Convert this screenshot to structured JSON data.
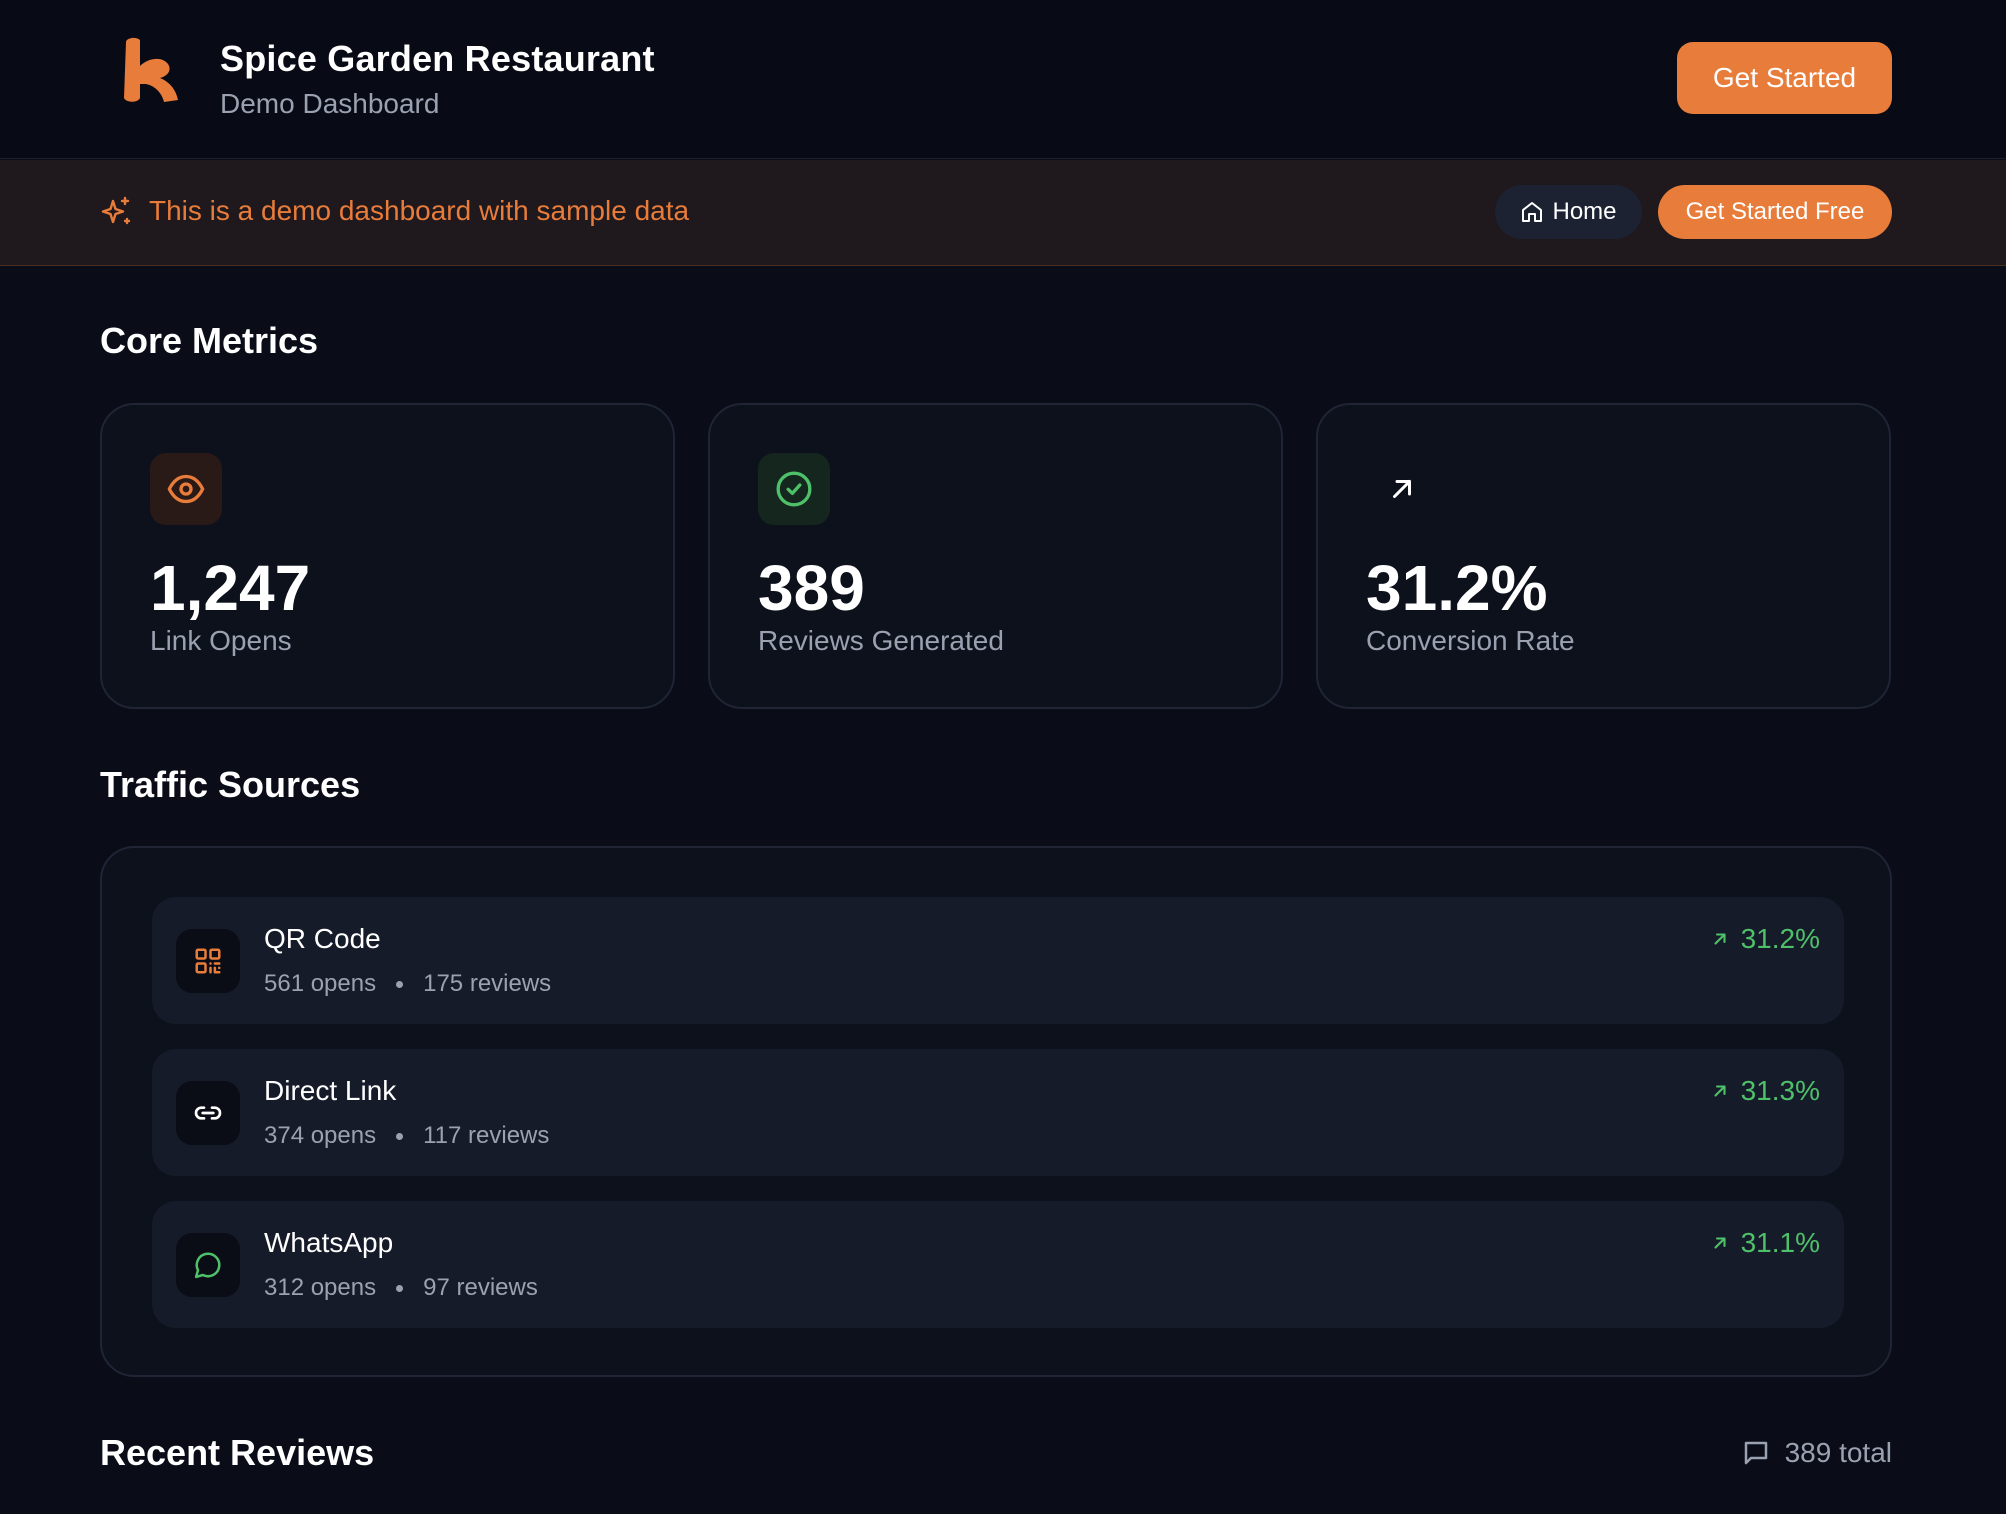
{
  "header": {
    "title": "Spice Garden Restaurant",
    "subtitle": "Demo Dashboard",
    "cta_label": "Get Started"
  },
  "banner": {
    "text": "This is a demo dashboard with sample data",
    "home_label": "Home",
    "cta_label": "Get Started Free"
  },
  "core_metrics": {
    "title": "Core Metrics",
    "cards": [
      {
        "icon": "eye-icon",
        "value": "1,247",
        "label": "Link Opens",
        "accent": "#e87c3a"
      },
      {
        "icon": "check-circle-icon",
        "value": "389",
        "label": "Reviews Generated",
        "accent": "#4fc06a"
      },
      {
        "icon": "arrow-up-right-icon",
        "value": "31.2%",
        "label": "Conversion Rate",
        "accent": "#ffffff"
      }
    ]
  },
  "traffic_sources": {
    "title": "Traffic Sources",
    "items": [
      {
        "icon": "qr-code-icon",
        "name": "QR Code",
        "opens": "561 opens",
        "reviews": "175 reviews",
        "rate": "31.2%"
      },
      {
        "icon": "link-icon",
        "name": "Direct Link",
        "opens": "374 opens",
        "reviews": "117 reviews",
        "rate": "31.3%"
      },
      {
        "icon": "message-circle-icon",
        "name": "WhatsApp",
        "opens": "312 opens",
        "reviews": "97 reviews",
        "rate": "31.1%"
      }
    ]
  },
  "recent_reviews": {
    "title": "Recent Reviews",
    "total": "389 total"
  },
  "colors": {
    "accent": "#e87c3a",
    "success": "#4fc06a",
    "background": "#0a0d18"
  }
}
